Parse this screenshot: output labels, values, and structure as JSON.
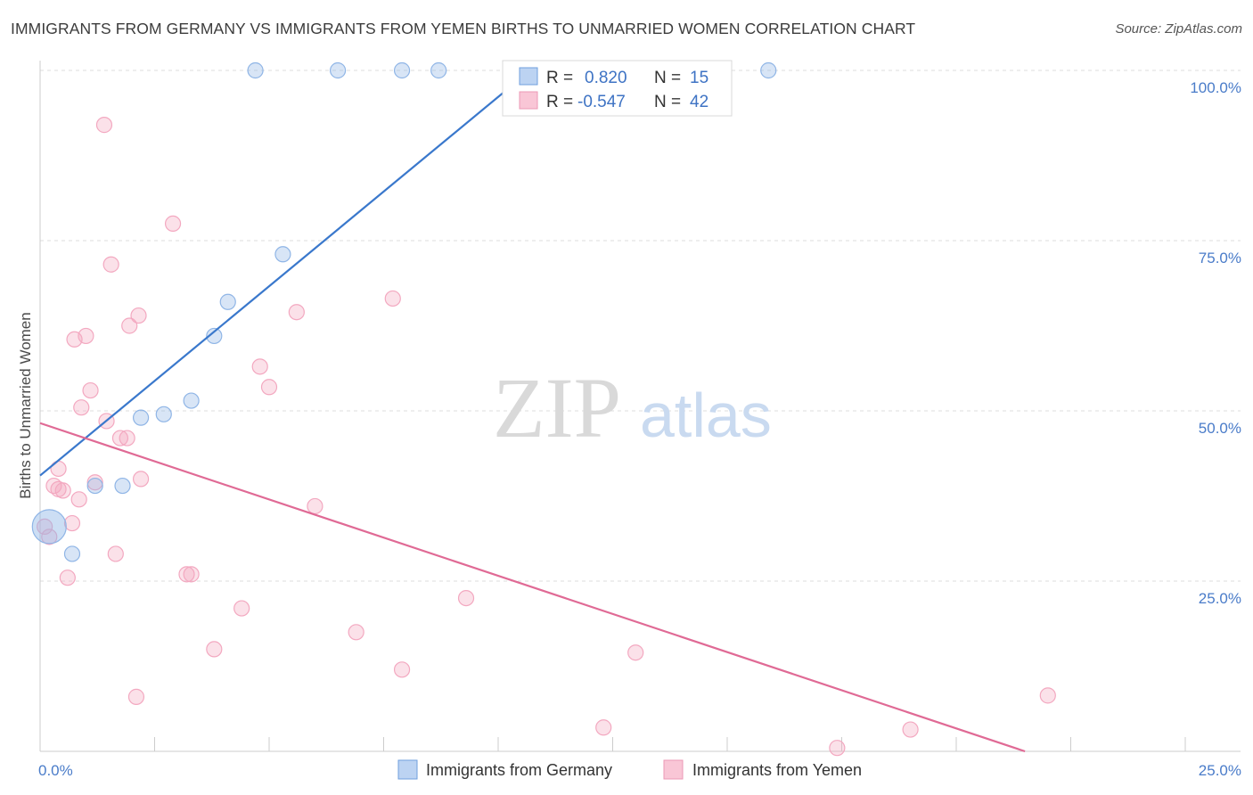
{
  "header": {
    "title": "IMMIGRANTS FROM GERMANY VS IMMIGRANTS FROM YEMEN BIRTHS TO UNMARRIED WOMEN CORRELATION CHART",
    "source": "Source: ZipAtlas.com"
  },
  "watermark": {
    "zip": "ZIP",
    "atlas": "atlas"
  },
  "legend_box": {
    "rows": [
      {
        "r_label": "R =",
        "r_value": "0.820",
        "n_label": "N =",
        "n_value": "15"
      },
      {
        "r_label": "R =",
        "r_value": "-0.547",
        "n_label": "N =",
        "n_value": "42"
      }
    ]
  },
  "chart_data": {
    "type": "scatter",
    "xlabel": "",
    "ylabel": "Births to Unmarried Women",
    "xlim": [
      0,
      25
    ],
    "ylim": [
      0,
      100
    ],
    "x_ticks": [
      {
        "value": 0,
        "label": "0.0%"
      },
      {
        "value": 25,
        "label": "25.0%"
      }
    ],
    "y_ticks": [
      {
        "value": 25,
        "label": "25.0%"
      },
      {
        "value": 50,
        "label": "50.0%"
      },
      {
        "value": 75,
        "label": "75.0%"
      },
      {
        "value": 100,
        "label": "100.0%"
      }
    ],
    "grid": true,
    "legend_position": "bottom",
    "series": [
      {
        "name": "Immigrants from Germany",
        "color": "#8fb5e6",
        "line_color": "#3a78cc",
        "points": [
          {
            "x": 0.2,
            "y": 33,
            "big": true
          },
          {
            "x": 0.7,
            "y": 29
          },
          {
            "x": 1.2,
            "y": 39
          },
          {
            "x": 1.8,
            "y": 39
          },
          {
            "x": 2.2,
            "y": 49
          },
          {
            "x": 2.7,
            "y": 49.5
          },
          {
            "x": 3.3,
            "y": 51.5
          },
          {
            "x": 3.8,
            "y": 61
          },
          {
            "x": 4.1,
            "y": 66
          },
          {
            "x": 5.3,
            "y": 73
          },
          {
            "x": 4.7,
            "y": 100
          },
          {
            "x": 6.5,
            "y": 100
          },
          {
            "x": 7.9,
            "y": 100
          },
          {
            "x": 8.7,
            "y": 100
          },
          {
            "x": 15.9,
            "y": 100
          }
        ],
        "trend": {
          "x": [
            0,
            10.7
          ],
          "y": [
            40.5,
            100
          ]
        }
      },
      {
        "name": "Immigrants from Yemen",
        "color": "#f3a8c0",
        "line_color": "#e06a95",
        "points": [
          {
            "x": 0.1,
            "y": 33
          },
          {
            "x": 0.2,
            "y": 31.5
          },
          {
            "x": 0.3,
            "y": 39
          },
          {
            "x": 0.4,
            "y": 38.5
          },
          {
            "x": 0.4,
            "y": 41.5
          },
          {
            "x": 0.5,
            "y": 38.3
          },
          {
            "x": 0.6,
            "y": 25.5
          },
          {
            "x": 0.7,
            "y": 33.5
          },
          {
            "x": 0.75,
            "y": 60.5
          },
          {
            "x": 0.85,
            "y": 37
          },
          {
            "x": 0.9,
            "y": 50.5
          },
          {
            "x": 1.0,
            "y": 61
          },
          {
            "x": 1.1,
            "y": 53
          },
          {
            "x": 1.2,
            "y": 39.5
          },
          {
            "x": 1.4,
            "y": 92
          },
          {
            "x": 1.45,
            "y": 48.5
          },
          {
            "x": 1.55,
            "y": 71.5
          },
          {
            "x": 1.65,
            "y": 29
          },
          {
            "x": 1.75,
            "y": 46
          },
          {
            "x": 1.9,
            "y": 46
          },
          {
            "x": 1.95,
            "y": 62.5
          },
          {
            "x": 2.1,
            "y": 8
          },
          {
            "x": 2.15,
            "y": 64
          },
          {
            "x": 2.2,
            "y": 40
          },
          {
            "x": 2.9,
            "y": 77.5
          },
          {
            "x": 3.2,
            "y": 26
          },
          {
            "x": 3.3,
            "y": 26
          },
          {
            "x": 3.8,
            "y": 15
          },
          {
            "x": 4.4,
            "y": 21
          },
          {
            "x": 4.8,
            "y": 56.5
          },
          {
            "x": 5.0,
            "y": 53.5
          },
          {
            "x": 5.6,
            "y": 64.5
          },
          {
            "x": 6.0,
            "y": 36
          },
          {
            "x": 6.9,
            "y": 17.5
          },
          {
            "x": 7.7,
            "y": 66.5
          },
          {
            "x": 7.9,
            "y": 12
          },
          {
            "x": 9.3,
            "y": 22.5
          },
          {
            "x": 12.3,
            "y": 3.5
          },
          {
            "x": 13.0,
            "y": 14.5
          },
          {
            "x": 17.4,
            "y": 0.5
          },
          {
            "x": 19.0,
            "y": 3.2
          },
          {
            "x": 22.0,
            "y": 8.2
          }
        ],
        "trend": {
          "x": [
            0,
            21.5
          ],
          "y": [
            48.2,
            0
          ]
        }
      }
    ]
  }
}
